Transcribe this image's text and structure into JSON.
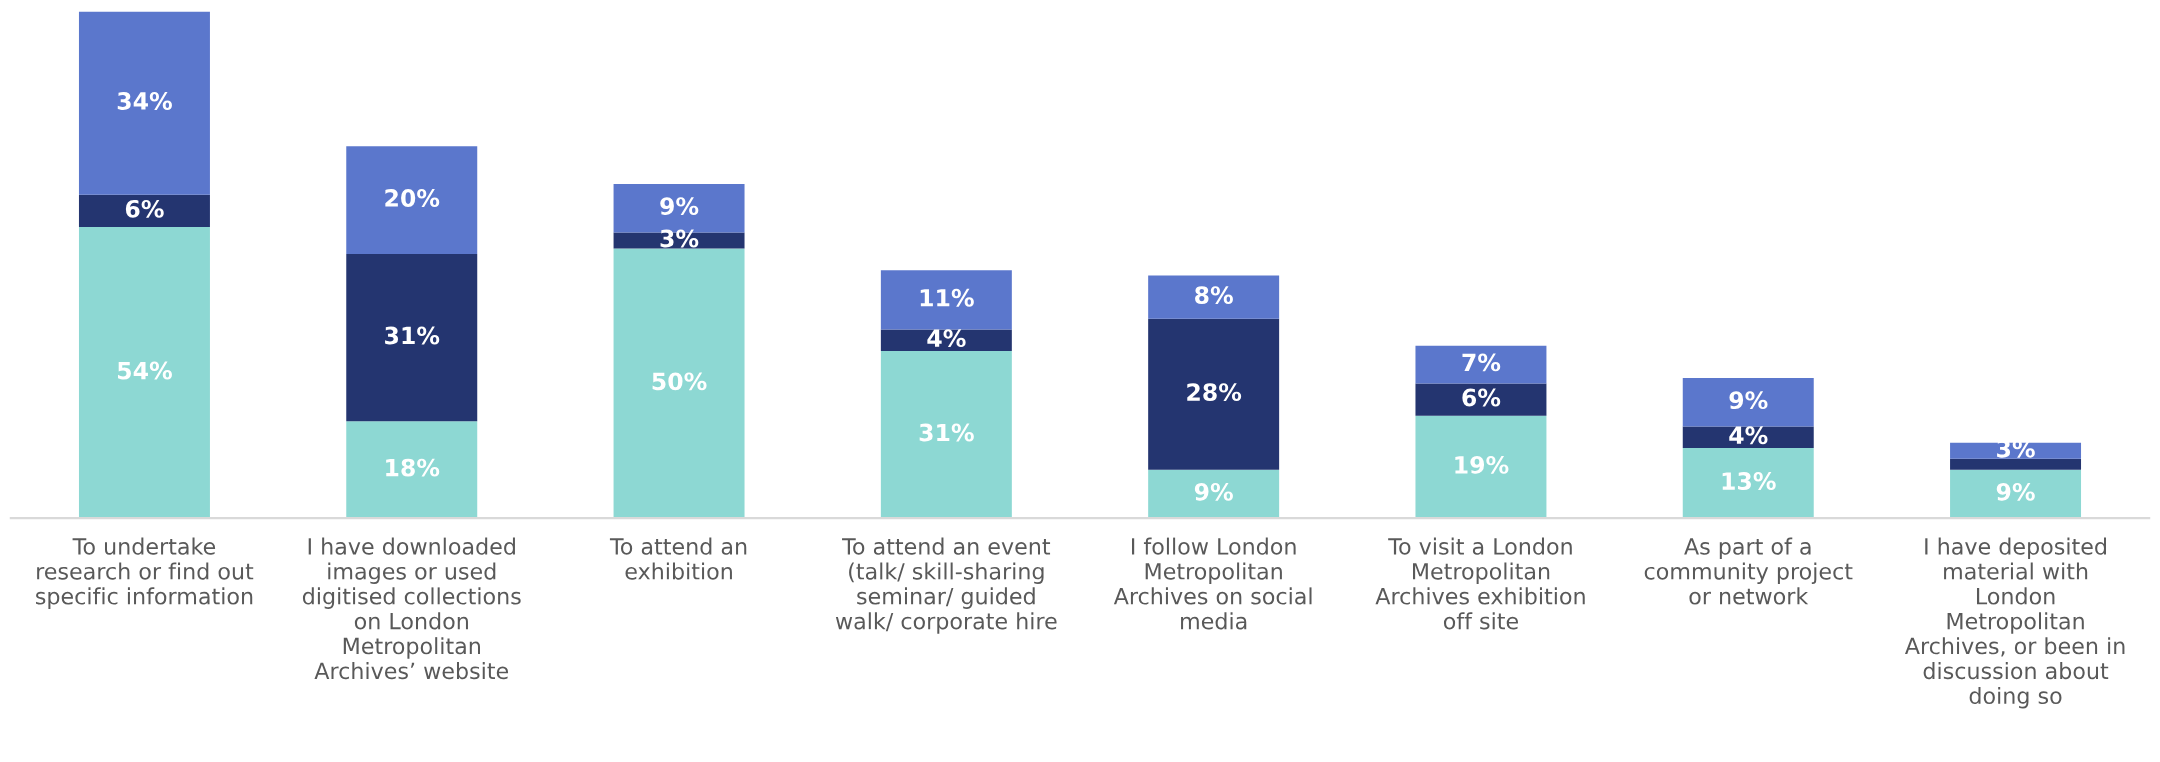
{
  "chart_data": {
    "type": "bar",
    "stacked": true,
    "categories": [
      "To undertake\nresearch or find out\nspecific information",
      "I have downloaded\nimages or used\ndigitised collections\non London\nMetropolitan\nArchives’ website",
      "To attend an\nexhibition",
      "To attend an event\n(talk/ skill-sharing\nseminar/ guided\nwalk/ corporate hire",
      "I follow London\nMetropolitan\nArchives on social\nmedia",
      "To visit a London\nMetropolitan\nArchives exhibition\noff site",
      "As part of a\ncommunity project\nor network",
      "I have deposited\nmaterial with\nLondon\nMetropolitan\nArchives, or been in\ndiscussion about\ndoing so"
    ],
    "series": [
      {
        "color": "#8dd8d3",
        "values": [
          54,
          18,
          50,
          31,
          9,
          19,
          13,
          9
        ],
        "value_labels": [
          "54%",
          "18%",
          "50%",
          "31%",
          "9%",
          "19%",
          "13%",
          "9%"
        ]
      },
      {
        "color": "#243570",
        "values": [
          6,
          31,
          3,
          4,
          28,
          6,
          4,
          2
        ],
        "value_labels": [
          "6%",
          "31%",
          "3%",
          "4%",
          "28%",
          "6%",
          "4%",
          null
        ]
      },
      {
        "color": "#5b77cc",
        "values": [
          34,
          20,
          9,
          11,
          8,
          7,
          9,
          3
        ],
        "value_labels": [
          "34%",
          "20%",
          "9%",
          "11%",
          "8%",
          "7%",
          "9%",
          "3%"
        ]
      }
    ],
    "grid": false,
    "legend": false
  }
}
